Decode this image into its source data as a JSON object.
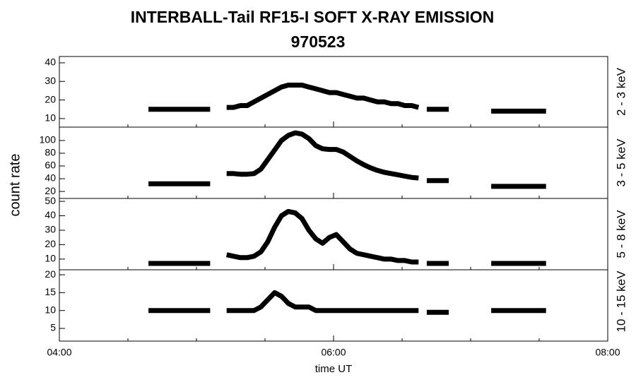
{
  "chart_data": {
    "type": "line",
    "title": "INTERBALL-Tail RF15-I SOFT X-RAY EMISSION",
    "subtitle": "970523",
    "ylabel": "count rate",
    "xlabel": "time UT",
    "color": "#000000",
    "xlim": [
      4,
      8
    ],
    "xticks": [
      {
        "value": 4,
        "label": "04:00"
      },
      {
        "value": 6,
        "label": "06:00"
      },
      {
        "value": 8,
        "label": "08:00"
      }
    ],
    "xminorticks": [
      4.5,
      5,
      5.5,
      6.5,
      7,
      7.5
    ],
    "x": [
      4.65,
      4.7,
      4.75,
      4.8,
      4.85,
      4.9,
      4.95,
      5.0,
      5.05,
      5.1,
      5.16,
      5.22,
      5.27,
      5.32,
      5.37,
      5.42,
      5.47,
      5.52,
      5.57,
      5.62,
      5.67,
      5.72,
      5.77,
      5.82,
      5.87,
      5.92,
      5.97,
      6.02,
      6.07,
      6.12,
      6.17,
      6.22,
      6.27,
      6.32,
      6.37,
      6.42,
      6.47,
      6.52,
      6.57,
      6.62,
      6.65,
      6.68,
      6.73,
      6.78,
      6.84,
      6.97,
      7.15,
      7.2,
      7.25,
      7.3,
      7.35,
      7.4,
      7.45,
      7.5,
      7.55
    ],
    "panels": [
      {
        "name": "2 - 3 keV",
        "ylim": [
          5.4,
          43.4
        ],
        "yticks": [
          10,
          20,
          30,
          40
        ],
        "values": [
          15,
          15,
          15,
          15,
          15,
          15,
          15,
          15,
          15,
          15,
          null,
          16,
          16,
          17,
          17,
          19,
          21,
          23,
          25,
          27,
          28,
          28,
          28,
          27,
          26,
          25,
          24,
          24,
          23,
          22,
          21,
          21,
          20,
          19,
          19,
          18,
          18,
          17,
          17,
          16,
          null,
          15,
          15,
          15,
          15,
          null,
          14,
          14,
          14,
          14,
          14,
          14,
          14,
          14,
          14
        ]
      },
      {
        "name": "3 - 5 keV",
        "ylim": [
          9,
          121
        ],
        "yticks": [
          20,
          40,
          60,
          80,
          100
        ],
        "values": [
          32,
          32,
          32,
          32,
          32,
          32,
          32,
          32,
          32,
          32,
          null,
          48,
          48,
          47,
          47,
          48,
          55,
          70,
          85,
          100,
          108,
          112,
          110,
          103,
          92,
          87,
          86,
          86,
          82,
          75,
          68,
          62,
          57,
          53,
          50,
          48,
          46,
          44,
          42,
          41,
          null,
          37,
          37,
          37,
          37,
          null,
          28,
          28,
          28,
          28,
          28,
          28,
          28,
          28,
          28
        ]
      },
      {
        "name": "5 - 8 keV",
        "ylim": [
          2.6,
          52
        ],
        "yticks": [
          10,
          20,
          30,
          40,
          50
        ],
        "values": [
          7,
          7,
          7,
          7,
          7,
          7,
          7,
          7,
          7,
          7,
          null,
          13,
          12,
          11,
          11,
          12,
          15,
          22,
          32,
          40,
          43,
          42,
          38,
          30,
          24,
          21,
          25,
          27,
          22,
          17,
          14,
          13,
          12,
          11,
          10,
          10,
          9,
          9,
          8,
          8,
          null,
          7,
          7,
          7,
          7,
          null,
          7,
          7,
          7,
          7,
          7,
          7,
          7,
          7,
          7
        ]
      },
      {
        "name": "10 - 15 keV",
        "ylim": [
          1.45,
          21.4
        ],
        "yticks": [
          5,
          10,
          15,
          20
        ],
        "values": [
          10,
          10,
          10,
          10,
          10,
          10,
          10,
          10,
          10,
          10,
          null,
          10,
          10,
          10,
          10,
          10,
          11,
          13,
          15,
          14,
          12,
          11,
          11,
          11,
          10,
          10,
          10,
          10,
          10,
          10,
          10,
          10,
          10,
          10,
          10,
          10,
          10,
          10,
          10,
          10,
          null,
          9.5,
          9.5,
          9.5,
          9.5,
          null,
          10,
          10,
          10,
          10,
          10,
          10,
          10,
          10,
          10
        ]
      }
    ]
  }
}
